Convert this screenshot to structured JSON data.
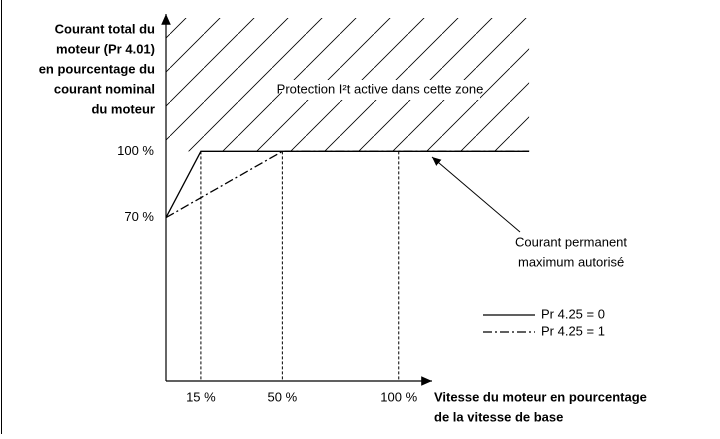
{
  "chart_data": {
    "type": "line",
    "ylabel": [
      "Courant total du",
      "moteur (Pr 4.01)",
      "en pourcentage du",
      "courant nominal",
      "du moteur"
    ],
    "xlabel": [
      "Vitesse du moteur en pourcentage",
      "de la vitesse de base"
    ],
    "zone_label": "Protection I²t active dans cette zone",
    "annotation": [
      "Courant permanent",
      "maximum autorisé"
    ],
    "xlim": [
      0,
      113
    ],
    "ylim": [
      -4,
      164
    ],
    "xticks": [
      {
        "value": 15,
        "label": "15 %"
      },
      {
        "value": 50,
        "label": "50 %"
      },
      {
        "value": 100,
        "label": "100 %"
      }
    ],
    "yticks": [
      {
        "value": 70,
        "label": "70 %"
      },
      {
        "value": 100,
        "label": "100 %"
      }
    ],
    "series": [
      {
        "name": "Pr 4.25 = 0",
        "color": "#000000",
        "x": [
          0,
          15,
          156
        ],
        "values": [
          70,
          100,
          100
        ]
      },
      {
        "name": "Pr 4.25 = 1",
        "color": "#000000",
        "x": [
          0,
          50,
          156
        ],
        "values": [
          70,
          100,
          100
        ]
      }
    ]
  }
}
